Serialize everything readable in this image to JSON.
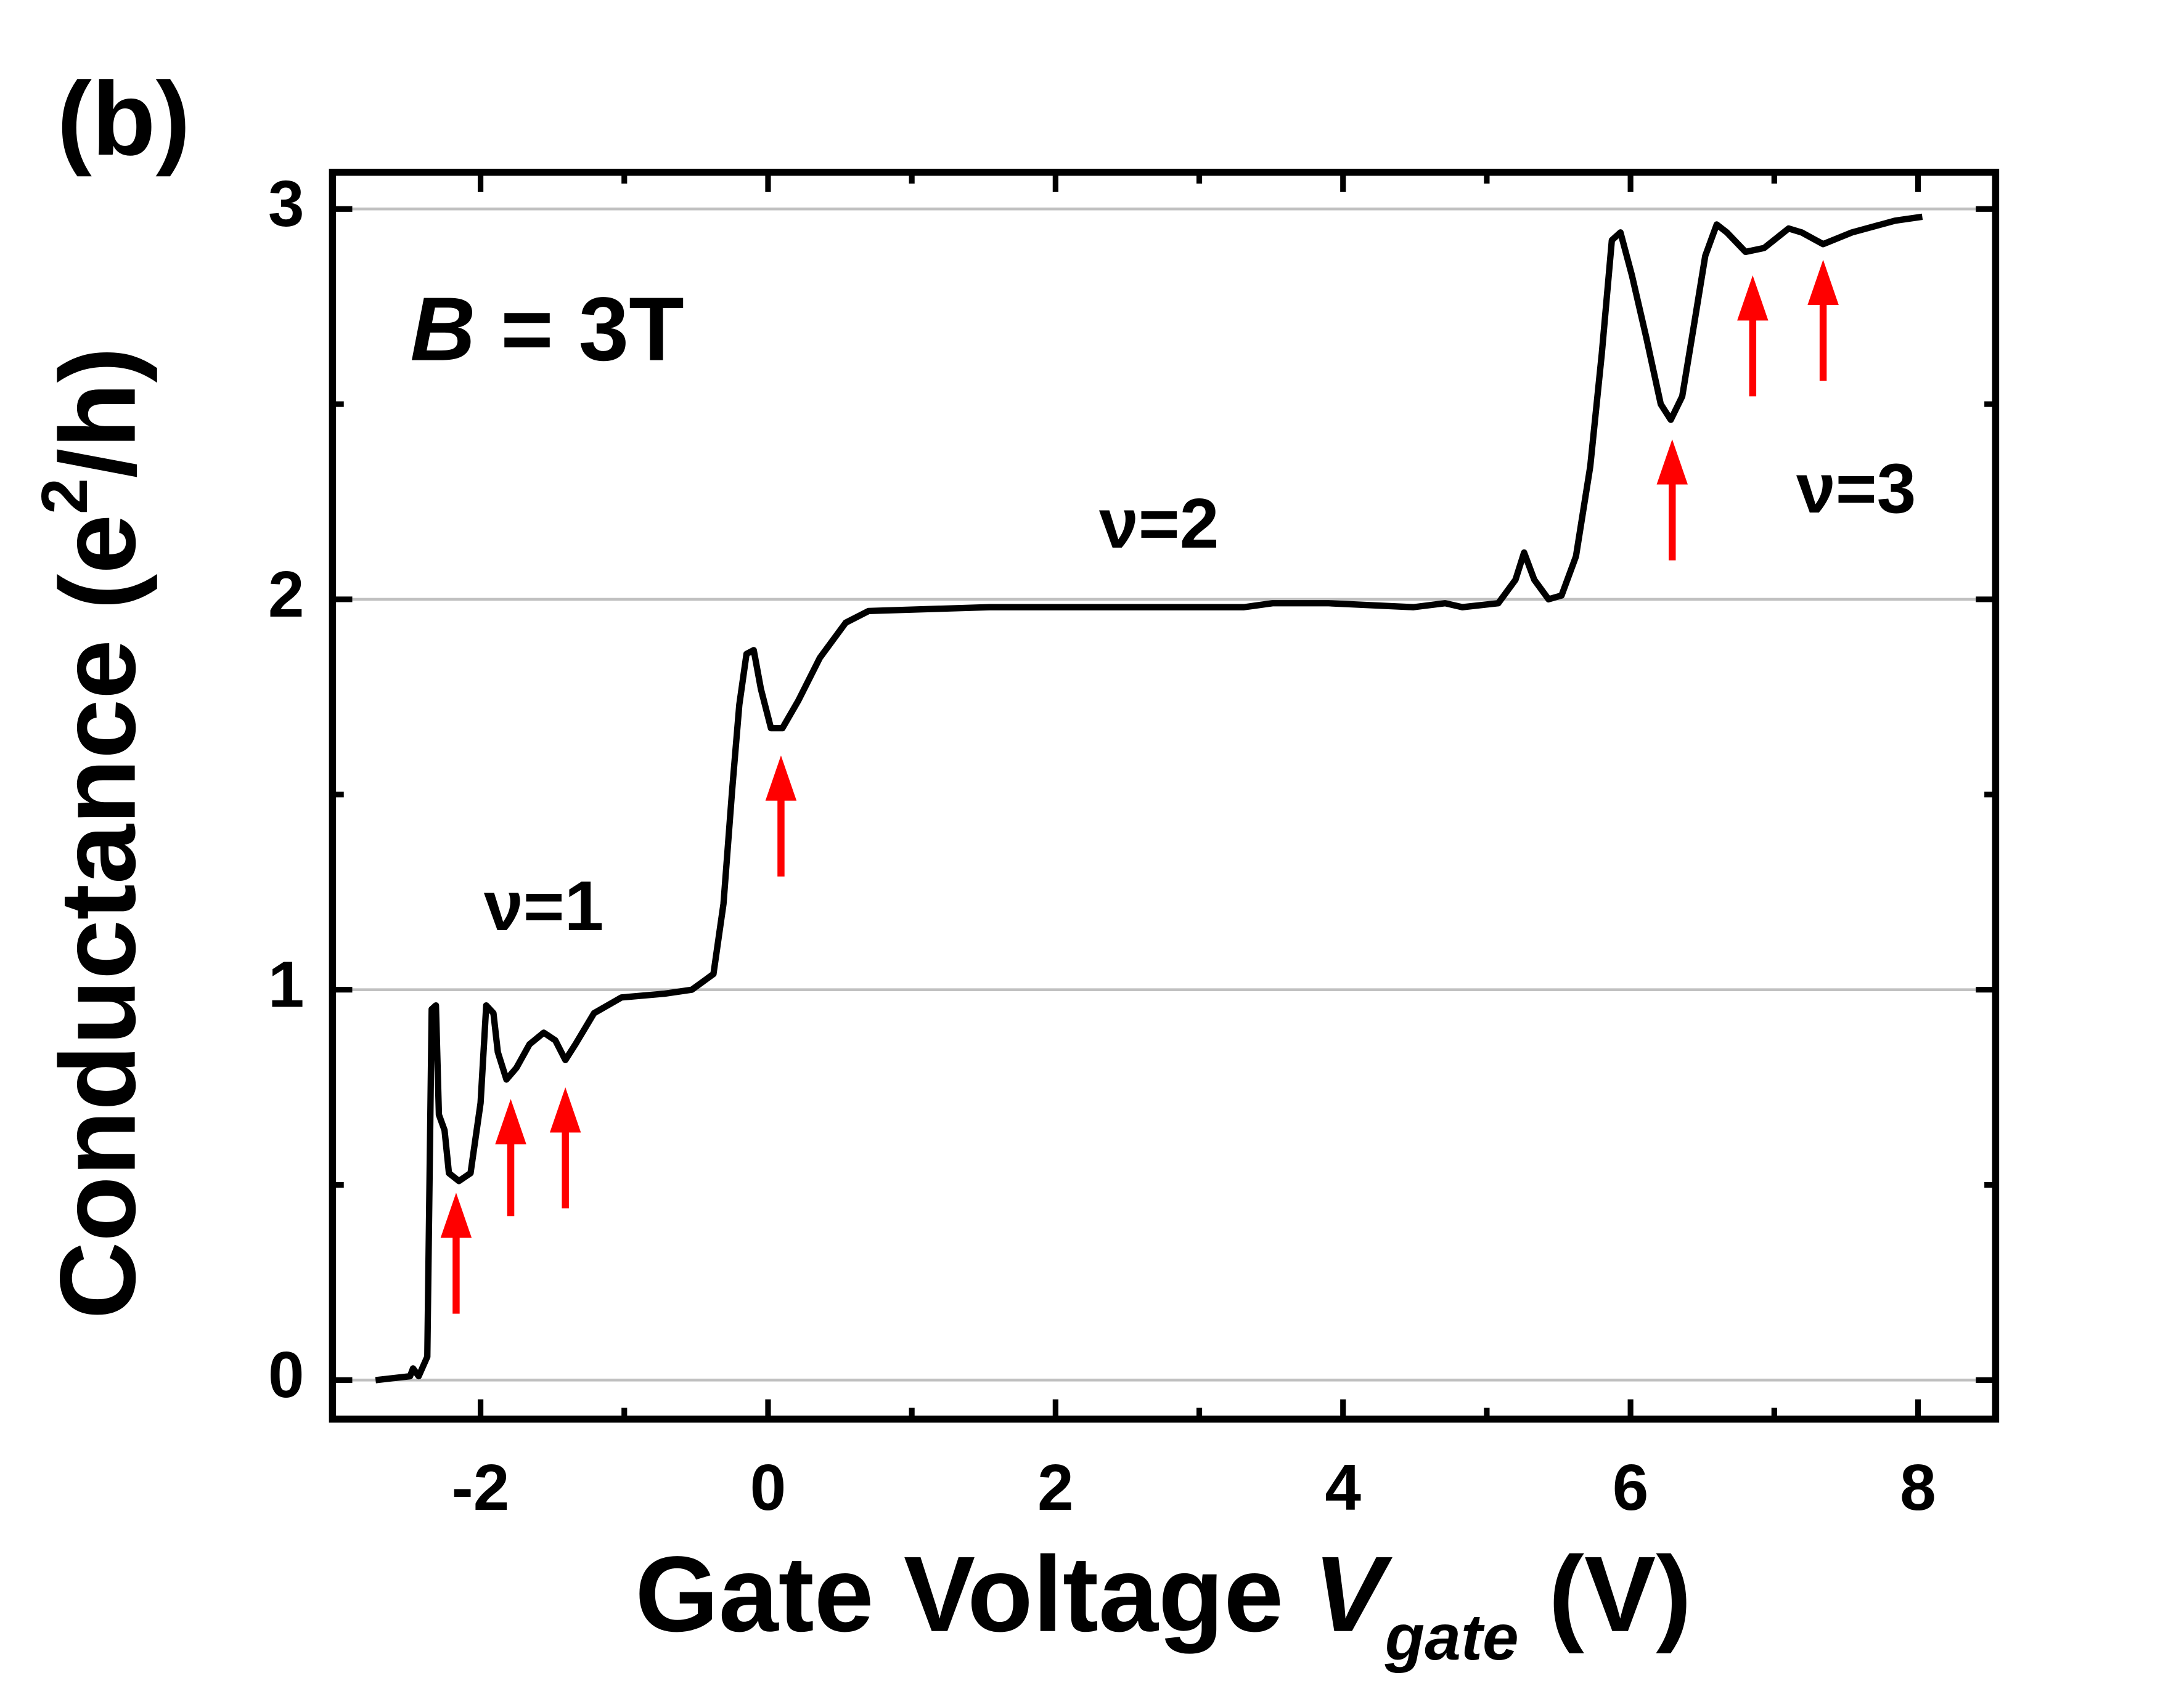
{
  "chart_data": {
    "type": "line",
    "panel_label": "(b)",
    "inset_label": {
      "variable": "B",
      "rest": " = 3T"
    },
    "xlabel": {
      "text": "Gate Voltage ",
      "variable": "V",
      "subscript": "gate",
      "unit": " (V)"
    },
    "ylabel": {
      "text": "Conductance (e",
      "superscript": "2",
      "unit": "/h)"
    },
    "xlim": [
      -3.03,
      8.54
    ],
    "ylim": [
      -0.1,
      3.094
    ],
    "xticks": [
      -2,
      0,
      2,
      4,
      6,
      8
    ],
    "xticks_minor": [
      -1,
      1,
      3,
      5,
      7
    ],
    "yticks": [
      0,
      1,
      2,
      3
    ],
    "yticks_minor": [
      0.5,
      1.5,
      2.5
    ],
    "grid": true,
    "series": [
      {
        "color": "#000000",
        "x": [
          -2.73,
          -2.49,
          -2.47,
          -2.43,
          -2.37,
          -2.34,
          -2.31,
          -2.29,
          -2.25,
          -2.22,
          -2.15,
          -2.07,
          -2.0,
          -1.96,
          -1.91,
          -1.88,
          -1.82,
          -1.75,
          -1.66,
          -1.56,
          -1.48,
          -1.41,
          -1.34,
          -1.21,
          -1.02,
          -0.72,
          -0.53,
          -0.38,
          -0.31,
          -0.25,
          -0.2,
          -0.15,
          -0.1,
          -0.05,
          0.02,
          0.1,
          0.21,
          0.36,
          0.54,
          0.7,
          1.54,
          3.31,
          3.51,
          3.9,
          4.49,
          4.71,
          4.83,
          5.08,
          5.2,
          5.26,
          5.33,
          5.43,
          5.52,
          5.62,
          5.72,
          5.8,
          5.87,
          5.93,
          6.01,
          6.11,
          6.21,
          6.28,
          6.36,
          6.44,
          6.52,
          6.6,
          6.67,
          6.8,
          6.93,
          7.1,
          7.19,
          7.34,
          7.54,
          7.84,
          8.03
        ],
        "values": [
          0,
          0.01,
          0.03,
          0.01,
          0.06,
          0.95,
          0.96,
          0.68,
          0.64,
          0.53,
          0.51,
          0.53,
          0.71,
          0.96,
          0.94,
          0.84,
          0.77,
          0.8,
          0.86,
          0.89,
          0.87,
          0.82,
          0.86,
          0.94,
          0.98,
          0.99,
          1.0,
          1.04,
          1.22,
          1.51,
          1.73,
          1.86,
          1.87,
          1.77,
          1.67,
          1.67,
          1.74,
          1.85,
          1.94,
          1.97,
          1.98,
          1.98,
          1.99,
          1.99,
          1.98,
          1.99,
          1.98,
          1.99,
          2.05,
          2.12,
          2.05,
          2.0,
          2.01,
          2.11,
          2.34,
          2.63,
          2.92,
          2.94,
          2.83,
          2.67,
          2.5,
          2.46,
          2.52,
          2.7,
          2.88,
          2.96,
          2.94,
          2.89,
          2.9,
          2.95,
          2.94,
          2.91,
          2.94,
          2.97,
          2.98
        ]
      }
    ],
    "annotations": [
      {
        "text": "ν=1",
        "x": -1.56,
        "y": 1.2
      },
      {
        "text": "ν=2",
        "x": 2.72,
        "y": 2.18
      },
      {
        "text": "ν=3",
        "x": 7.57,
        "y": 2.27
      }
    ],
    "arrow_color": "#ff0000",
    "arrows": [
      {
        "x": -2.17,
        "y": 0.48,
        "y_tail": 0.17
      },
      {
        "x": -1.79,
        "y": 0.72,
        "y_tail": 0.42
      },
      {
        "x": -1.41,
        "y": 0.75,
        "y_tail": 0.44
      },
      {
        "x": 0.09,
        "y": 1.6,
        "y_tail": 1.29
      },
      {
        "x": 6.29,
        "y": 2.41,
        "y_tail": 2.1
      },
      {
        "x": 6.85,
        "y": 2.83,
        "y_tail": 2.52
      },
      {
        "x": 7.34,
        "y": 2.87,
        "y_tail": 2.56
      }
    ]
  }
}
